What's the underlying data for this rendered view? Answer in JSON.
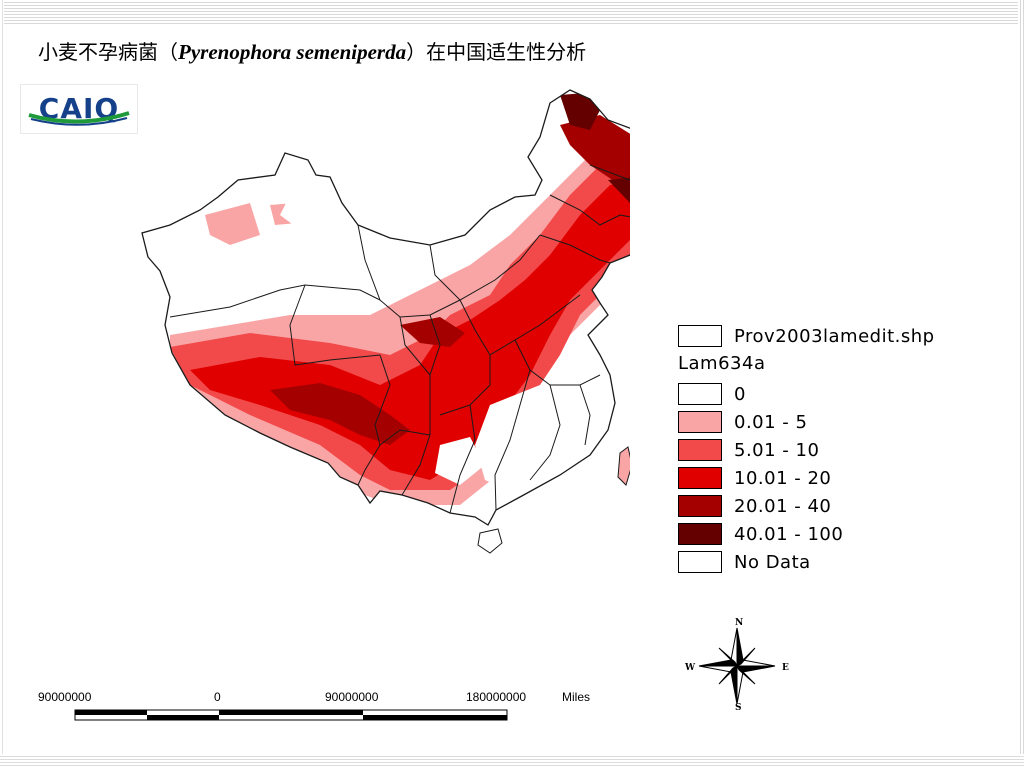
{
  "title": {
    "prefix": "小麦不孕病菌（",
    "species": "Pyrenophora semeniperda",
    "suffix": "）在中国适生性分析"
  },
  "logo": {
    "text": "CAIQ"
  },
  "legend": {
    "layer_name": "Prov2003lamedit.shp",
    "field_name": "Lam634a",
    "classes": [
      {
        "label": "0",
        "color": "#ffffff"
      },
      {
        "label": "0.01 - 5",
        "color": "#f9a5a5"
      },
      {
        "label": "5.01 - 10",
        "color": "#f24a4a"
      },
      {
        "label": "10.01 - 20",
        "color": "#e00000"
      },
      {
        "label": "20.01 - 40",
        "color": "#a40000"
      },
      {
        "label": "40.01 - 100",
        "color": "#650000"
      },
      {
        "label": "No Data",
        "color": "#ffffff"
      }
    ]
  },
  "compass": {
    "n": "N",
    "s": "S",
    "e": "E",
    "w": "W"
  },
  "scale_bar": {
    "labels": [
      "90000000",
      "0",
      "90000000",
      "180000000"
    ],
    "unit": "Miles"
  }
}
